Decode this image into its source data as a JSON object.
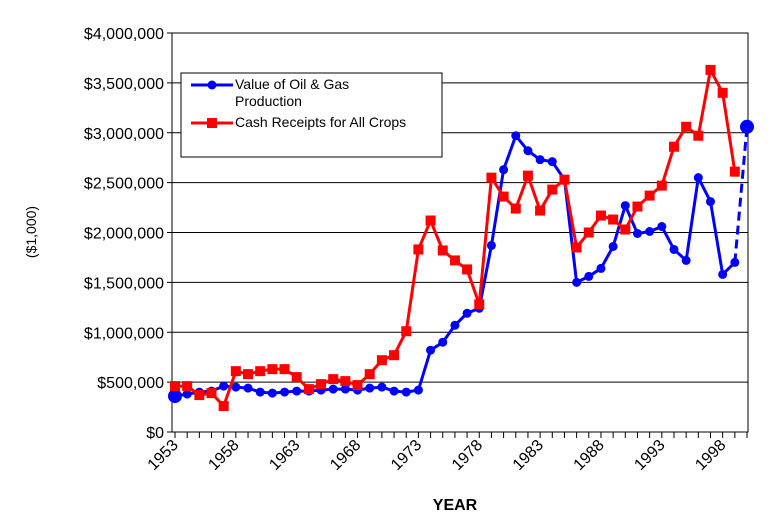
{
  "chart_data": {
    "type": "line",
    "x_label": "YEAR",
    "y_label": "($1,000)",
    "x": [
      1953,
      1954,
      1955,
      1956,
      1957,
      1958,
      1959,
      1960,
      1961,
      1962,
      1963,
      1964,
      1965,
      1966,
      1967,
      1968,
      1969,
      1970,
      1971,
      1972,
      1973,
      1974,
      1975,
      1976,
      1977,
      1978,
      1979,
      1980,
      1981,
      1982,
      1983,
      1984,
      1985,
      1986,
      1987,
      1988,
      1989,
      1990,
      1991,
      1992,
      1993,
      1994,
      1995,
      1996,
      1997,
      1998,
      1999,
      2000
    ],
    "xlim": [
      1953,
      2000
    ],
    "xticks": [
      1953,
      1958,
      1963,
      1968,
      1973,
      1978,
      1983,
      1988,
      1993,
      1998
    ],
    "ylim": [
      0,
      4000000
    ],
    "yticks": [
      {
        "value": 0,
        "label": "$0"
      },
      {
        "value": 500000,
        "label": "$500,000"
      },
      {
        "value": 1000000,
        "label": "$1,000,000"
      },
      {
        "value": 1500000,
        "label": "$1,500,000"
      },
      {
        "value": 2000000,
        "label": "$2,000,000"
      },
      {
        "value": 2500000,
        "label": "$2,500,000"
      },
      {
        "value": 3000000,
        "label": "$3,000,000"
      },
      {
        "value": 3500000,
        "label": "$3,500,000"
      },
      {
        "value": 4000000,
        "label": "$4,000,000"
      }
    ],
    "grid": true,
    "legend": "top-left",
    "series": [
      {
        "name": "Value of Oil & Gas Production",
        "color": "#0000ff",
        "marker": "circle",
        "dashed_last_segment": true,
        "values": [
          360000,
          380000,
          400000,
          410000,
          460000,
          450000,
          440000,
          400000,
          390000,
          400000,
          410000,
          410000,
          420000,
          430000,
          430000,
          420000,
          440000,
          450000,
          410000,
          400000,
          420000,
          820000,
          900000,
          1070000,
          1190000,
          1240000,
          1870000,
          2630000,
          2970000,
          2820000,
          2730000,
          2710000,
          2530000,
          1500000,
          1560000,
          1640000,
          1860000,
          2270000,
          1990000,
          2010000,
          2060000,
          1830000,
          1720000,
          2550000,
          2310000,
          1580000,
          1700000,
          3060000
        ]
      },
      {
        "name": "Cash Receipts for All Crops",
        "color": "#ff0000",
        "marker": "square",
        "values": [
          460000,
          460000,
          370000,
          390000,
          260000,
          610000,
          580000,
          610000,
          630000,
          630000,
          550000,
          430000,
          480000,
          530000,
          510000,
          470000,
          580000,
          720000,
          770000,
          1010000,
          1830000,
          2120000,
          1820000,
          1720000,
          1630000,
          1280000,
          2550000,
          2360000,
          2240000,
          2570000,
          2220000,
          2430000,
          2530000,
          1850000,
          2000000,
          2170000,
          2130000,
          2030000,
          2260000,
          2370000,
          2470000,
          2860000,
          3060000,
          2970000,
          3630000,
          3400000,
          2610000,
          null
        ]
      }
    ]
  }
}
